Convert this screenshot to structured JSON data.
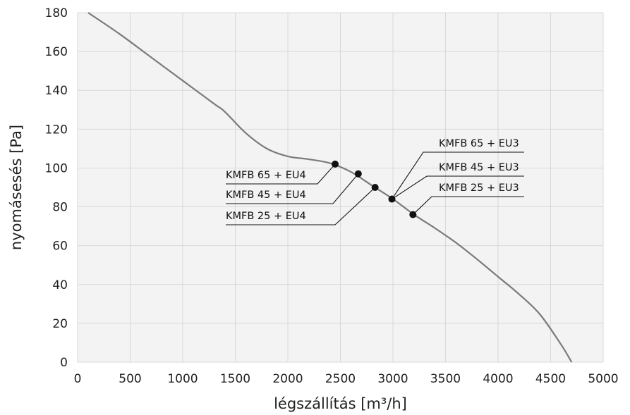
{
  "chart_data": {
    "type": "line",
    "title": "",
    "xlabel": "légszállítás [m³/h]",
    "ylabel": "nyomásesés [Pa]",
    "xlim": [
      0,
      5000
    ],
    "ylim": [
      0,
      180
    ],
    "x_ticks": [
      0,
      500,
      1000,
      1500,
      2000,
      2500,
      3000,
      3500,
      4000,
      4500,
      5000
    ],
    "y_ticks": [
      0,
      20,
      40,
      60,
      80,
      100,
      120,
      140,
      160,
      180
    ],
    "grid": true,
    "background": "#f3f3f3",
    "curve_color": "#7a7a7a",
    "series": [
      {
        "x": [
          100,
          400,
          700,
          1000,
          1300,
          1400,
          1600,
          1800,
          2000,
          2200,
          2400,
          2600,
          2800,
          3000,
          3200,
          3400,
          3600,
          3800,
          4000,
          4200,
          4400,
          4600,
          4700
        ],
        "y": [
          180,
          169,
          157,
          145,
          133,
          129,
          118,
          110,
          106,
          104.5,
          102.5,
          98,
          91,
          84,
          76,
          69,
          61.5,
          53,
          44,
          35,
          24.5,
          9,
          0
        ]
      }
    ],
    "points": [
      {
        "label": "KMFB 65 + EU4",
        "x": 2450,
        "y": 102
      },
      {
        "label": "KMFB 45 + EU4",
        "x": 2670,
        "y": 97
      },
      {
        "label": "KMFB 25 + EU4",
        "x": 2830,
        "y": 90
      },
      {
        "label": "KMFB 65 + EU3",
        "x": 2990,
        "y": 84
      },
      {
        "label": "KMFB 45 + EU3",
        "x": 2990,
        "y": 84
      },
      {
        "label": "KMFB 25 + EU3",
        "x": 3190,
        "y": 76
      }
    ]
  }
}
